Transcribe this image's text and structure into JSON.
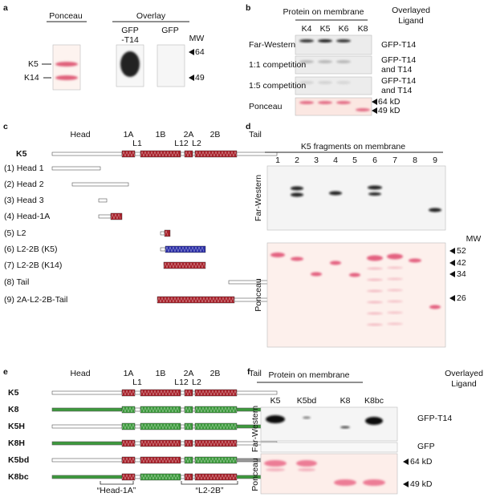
{
  "panel_a": {
    "letter": "a",
    "ponceau": "Ponceau",
    "overlay": "Overlay",
    "lane1": [
      "GFP",
      "-T14"
    ],
    "lane2": "GFP",
    "mw": "MW",
    "bands": [
      "K5",
      "K14"
    ],
    "markers": [
      "64",
      "49"
    ]
  },
  "panel_b": {
    "letter": "b",
    "title": "Protein on membrane",
    "ligand_header": [
      "Overlayed",
      "Ligand"
    ],
    "lanes": [
      "K4",
      "K5",
      "K6",
      "K8"
    ],
    "rows": [
      {
        "label": "Far-Western",
        "ligand": [
          "GFP-T14"
        ]
      },
      {
        "label": "1:1 competition",
        "ligand": [
          "GFP-T14",
          "and T14"
        ]
      },
      {
        "label": "1:5 competition",
        "ligand": [
          "GFP-T14",
          "and T14"
        ]
      },
      {
        "label": "Ponceau",
        "ligand": []
      }
    ],
    "markers": [
      "64 kD",
      "49 kD"
    ]
  },
  "panel_c": {
    "letter": "c",
    "domains": [
      "Head",
      "1A",
      "1B",
      "2A",
      "2B",
      "Tail"
    ],
    "linkers": [
      "L1",
      "L12",
      "L2"
    ],
    "protein": "K5",
    "fragments": [
      "(1) Head 1",
      "(2) Head 2",
      "(3) Head 3",
      "(4) Head-1A",
      "(5) L2",
      "(6) L2-2B (K5)",
      "(7) L2-2B (K14)",
      "(8) Tail",
      "(9) 2A-L2-2B-Tail"
    ]
  },
  "panel_d": {
    "letter": "d",
    "title": "K5 fragments on membrane",
    "lanes": [
      "1",
      "2",
      "3",
      "4",
      "5",
      "6",
      "7",
      "8",
      "9"
    ],
    "rows": [
      "Far-Western",
      "Ponceau"
    ],
    "mw": "MW",
    "markers": [
      "52",
      "42",
      "34",
      "26"
    ]
  },
  "panel_e": {
    "letter": "e",
    "domains": [
      "Head",
      "1A",
      "1B",
      "2A",
      "2B",
      "Tail"
    ],
    "linkers": [
      "L1",
      "L12",
      "L2"
    ],
    "proteins": [
      "K5",
      "K8",
      "K5H",
      "K8H",
      "K5bd",
      "K8bc"
    ],
    "regions": [
      "“Head-1A”",
      "“L2-2B”"
    ]
  },
  "panel_f": {
    "letter": "f",
    "title": "Protein on membrane",
    "ligand_header": [
      "Overlayed",
      "Ligand"
    ],
    "lanes": [
      "K5",
      "K5bd",
      "K8",
      "K8bc"
    ],
    "rows": [
      "Far-Western",
      "Ponceau"
    ],
    "ligands": [
      "GFP-T14",
      "GFP"
    ],
    "markers": [
      "64 kD",
      "49 kD"
    ]
  }
}
